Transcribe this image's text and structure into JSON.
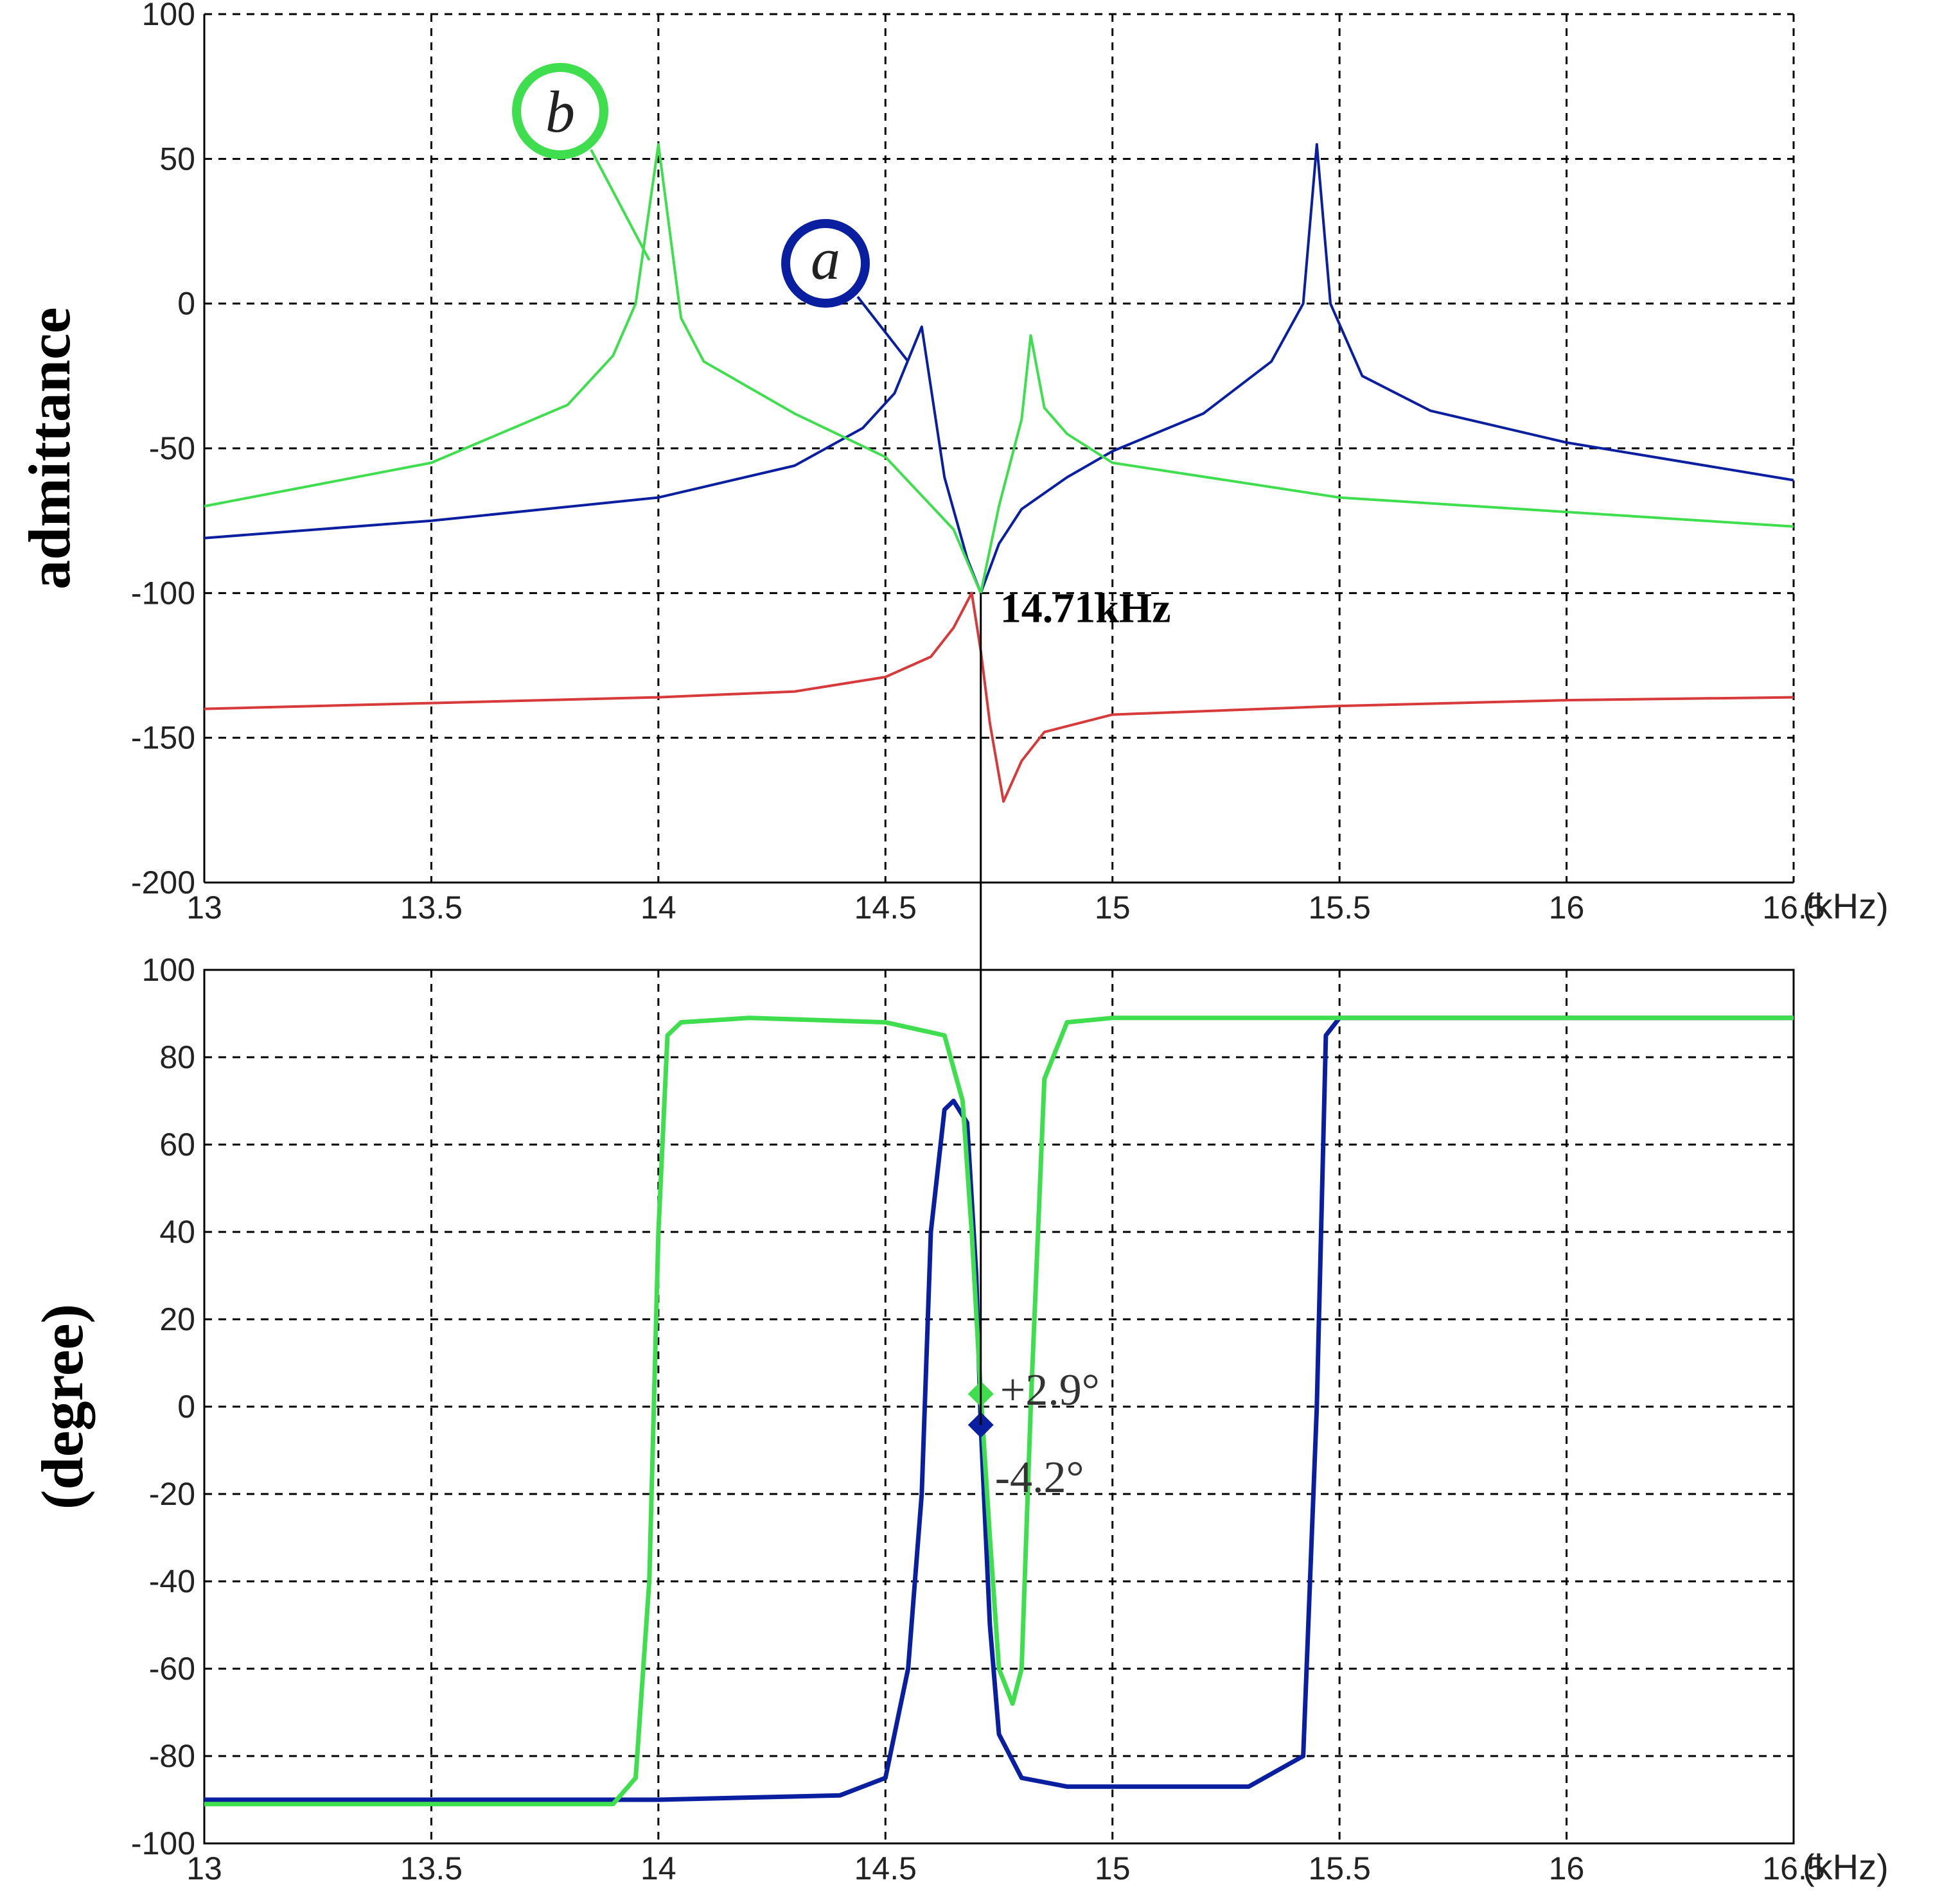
{
  "colors": {
    "curve_a": "#0a1fa0",
    "curve_b": "#3ede4e",
    "curve_c": "#d63a3a",
    "grid": "#000000"
  },
  "callouts": {
    "a": "a",
    "b": "b"
  },
  "annotations": {
    "frequency": "14.71kHz",
    "angle_b": "+2.9°",
    "angle_a": "-4.2°"
  },
  "chart_data": [
    {
      "type": "line",
      "title": "",
      "xlabel": "",
      "ylabel": "admittance",
      "x_unit": "(kHz)",
      "xlim": [
        13,
        16.5
      ],
      "ylim": [
        -200,
        100
      ],
      "x_ticks": [
        "13",
        "13.5",
        "14",
        "14.5",
        "15",
        "15.5",
        "16",
        "16.5"
      ],
      "y_ticks": [
        "100",
        "50",
        "0",
        "-50",
        "-100",
        "-150",
        "-200"
      ],
      "grid": true,
      "series": [
        {
          "key": "a",
          "x": [
            13.0,
            13.5,
            14.0,
            14.3,
            14.45,
            14.52,
            14.58,
            14.63,
            14.68,
            14.71,
            14.75,
            14.8,
            14.9,
            15.0,
            15.2,
            15.35,
            15.42,
            15.45,
            15.48,
            15.55,
            15.7,
            16.0,
            16.5
          ],
          "y": [
            -81,
            -75,
            -67,
            -56,
            -43,
            -31,
            -8,
            -60,
            -88,
            -100,
            -83,
            -71,
            -60,
            -51,
            -38,
            -20,
            0,
            55,
            0,
            -25,
            -37,
            -48,
            -61
          ]
        },
        {
          "key": "b",
          "x": [
            13.0,
            13.5,
            13.8,
            13.9,
            13.95,
            14.0,
            14.05,
            14.1,
            14.3,
            14.5,
            14.65,
            14.71,
            14.75,
            14.8,
            14.82,
            14.85,
            14.9,
            15.0,
            15.5,
            16.0,
            16.5
          ],
          "y": [
            -70,
            -55,
            -35,
            -18,
            0,
            55,
            -5,
            -20,
            -38,
            -53,
            -78,
            -100,
            -70,
            -40,
            -11,
            -36,
            -45,
            -55,
            -67,
            -72,
            -77
          ]
        },
        {
          "key": "c",
          "x": [
            13.0,
            13.5,
            14.0,
            14.3,
            14.5,
            14.6,
            14.65,
            14.69,
            14.71,
            14.73,
            14.76,
            14.8,
            14.85,
            15.0,
            15.5,
            16.0,
            16.5
          ],
          "y": [
            -140,
            -138,
            -136,
            -134,
            -129,
            -122,
            -112,
            -100,
            -120,
            -145,
            -172,
            -158,
            -148,
            -142,
            -139,
            -137,
            -136
          ]
        }
      ]
    },
    {
      "type": "line",
      "title": "",
      "xlabel": "",
      "ylabel": "(degree)",
      "x_unit": "(kHz)",
      "xlim": [
        13,
        16.5
      ],
      "ylim": [
        -100,
        100
      ],
      "x_ticks": [
        "13",
        "13.5",
        "14",
        "14.5",
        "15",
        "15.5",
        "16",
        "16.5"
      ],
      "y_ticks": [
        "100",
        "80",
        "60",
        "40",
        "20",
        "0",
        "-20",
        "-40",
        "-60",
        "-80",
        "-100"
      ],
      "grid": true,
      "series": [
        {
          "key": "a",
          "x": [
            13.0,
            14.0,
            14.4,
            14.5,
            14.55,
            14.58,
            14.6,
            14.63,
            14.65,
            14.68,
            14.7,
            14.71,
            14.73,
            14.75,
            14.8,
            14.9,
            15.0,
            15.3,
            15.42,
            15.45,
            15.47,
            15.5,
            16.0,
            16.5
          ],
          "y": [
            -90,
            -90,
            -89,
            -85,
            -60,
            -20,
            40,
            68,
            70,
            65,
            30,
            -4.2,
            -50,
            -75,
            -85,
            -87,
            -87,
            -87,
            -80,
            0,
            85,
            89,
            89,
            89
          ]
        },
        {
          "key": "b",
          "x": [
            13.0,
            13.9,
            13.95,
            13.98,
            14.0,
            14.02,
            14.05,
            14.2,
            14.5,
            14.63,
            14.67,
            14.69,
            14.71,
            14.73,
            14.75,
            14.78,
            14.8,
            14.82,
            14.85,
            14.9,
            15.0,
            16.5
          ],
          "y": [
            -91,
            -91,
            -85,
            -40,
            40,
            85,
            88,
            89,
            88,
            85,
            70,
            40,
            2.9,
            -30,
            -60,
            -68,
            -60,
            0,
            75,
            88,
            89,
            89
          ]
        }
      ],
      "markers": [
        {
          "series": "b",
          "x": 14.71,
          "y": 2.9
        },
        {
          "series": "a",
          "x": 14.71,
          "y": -4.2
        }
      ]
    }
  ]
}
